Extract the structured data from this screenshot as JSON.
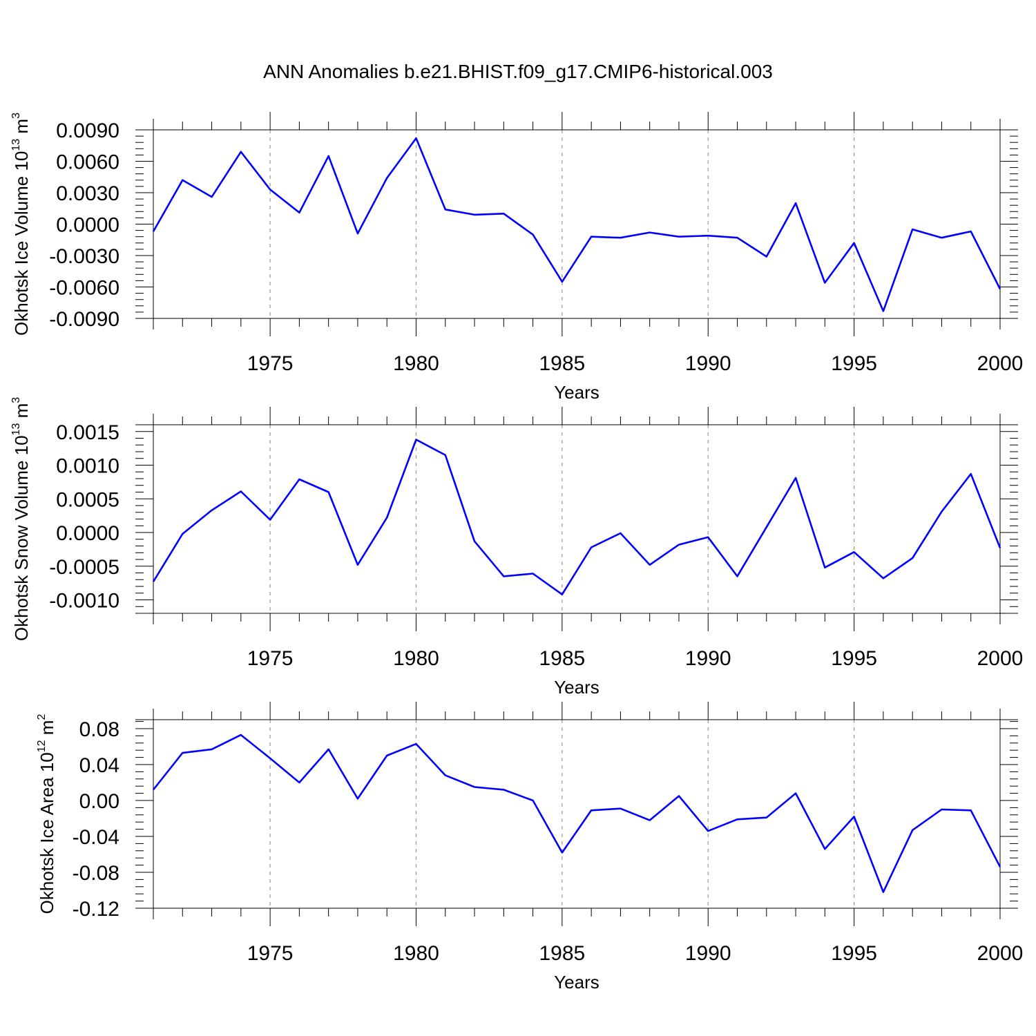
{
  "figure_title": "ANN Anomalies b.e21.BHIST.f09_g17.CMIP6-historical.003",
  "chart_data": [
    {
      "type": "line",
      "title": "ANN Anomalies b.e21.BHIST.f09_g17.CMIP6-historical.003",
      "ylabel": "Okhotsk Ice Volume",
      "ylabel_unit_base": "10",
      "ylabel_unit_exp": "13",
      "ylabel_unit_suffix": " m",
      "ylabel_unit_suffix_exp": "3",
      "xlabel": "Years",
      "xlim": [
        1971,
        2000
      ],
      "ylim": [
        -0.009,
        0.009
      ],
      "yticks": [
        0.009,
        0.006,
        0.003,
        0.0,
        -0.003,
        -0.006,
        -0.009
      ],
      "ytick_labels": [
        "0.0090",
        "0.0060",
        "0.0030",
        "0.0000",
        "-0.0030",
        "-0.0060",
        "-0.0090"
      ],
      "xticks": [
        1975,
        1980,
        1985,
        1990,
        1995,
        2000
      ],
      "xtick_labels": [
        "1975",
        "1980",
        "1985",
        "1990",
        "1995",
        "2000"
      ],
      "grid_x": true,
      "series": [
        {
          "name": "Okhotsk Ice Volume",
          "color": "#0000ff",
          "x": [
            1971,
            1972,
            1973,
            1974,
            1975,
            1976,
            1977,
            1978,
            1979,
            1980,
            1981,
            1982,
            1983,
            1984,
            1985,
            1986,
            1987,
            1988,
            1989,
            1990,
            1991,
            1992,
            1993,
            1994,
            1995,
            1996,
            1997,
            1998,
            1999,
            2000
          ],
          "values": [
            -0.0007,
            0.0042,
            0.0026,
            0.0069,
            0.0033,
            0.0011,
            0.0065,
            -0.0009,
            0.0044,
            0.0082,
            0.0014,
            0.0009,
            0.001,
            -0.001,
            -0.0055,
            -0.0012,
            -0.0013,
            -0.0008,
            -0.0012,
            -0.0011,
            -0.0013,
            -0.0031,
            0.002,
            -0.0056,
            -0.0018,
            -0.0083,
            -0.0005,
            -0.0013,
            -0.0007,
            -0.0062
          ]
        }
      ]
    },
    {
      "type": "line",
      "ylabel": "Okhotsk Snow Volume",
      "ylabel_unit_base": "10",
      "ylabel_unit_exp": "13",
      "ylabel_unit_suffix": " m",
      "ylabel_unit_suffix_exp": "3",
      "xlabel": "Years",
      "xlim": [
        1971,
        2000
      ],
      "ylim": [
        -0.0012,
        0.0016
      ],
      "yticks": [
        0.0015,
        0.001,
        0.0005,
        0.0,
        -0.0005,
        -0.001
      ],
      "ytick_labels": [
        "0.0015",
        "0.0010",
        "0.0005",
        "0.0000",
        "-0.0005",
        "-0.0010"
      ],
      "xticks": [
        1975,
        1980,
        1985,
        1990,
        1995,
        2000
      ],
      "xtick_labels": [
        "1975",
        "1980",
        "1985",
        "1990",
        "1995",
        "2000"
      ],
      "grid_x": true,
      "series": [
        {
          "name": "Okhotsk Snow Volume",
          "color": "#0000ff",
          "x": [
            1971,
            1972,
            1973,
            1974,
            1975,
            1976,
            1977,
            1978,
            1979,
            1980,
            1981,
            1982,
            1983,
            1984,
            1985,
            1986,
            1987,
            1988,
            1989,
            1990,
            1991,
            1992,
            1993,
            1994,
            1995,
            1996,
            1997,
            1998,
            1999,
            2000
          ],
          "values": [
            -0.00073,
            -2e-05,
            0.00033,
            0.00061,
            0.00019,
            0.00079,
            0.0006,
            -0.00048,
            0.00022,
            0.00138,
            0.00115,
            -0.00013,
            -0.00065,
            -0.00061,
            -0.00092,
            -0.00022,
            -1e-05,
            -0.00048,
            -0.00018,
            -7e-05,
            -0.00065,
            8e-05,
            0.00081,
            -0.00052,
            -0.00029,
            -0.00068,
            -0.00038,
            0.00031,
            0.00087,
            -0.00023
          ]
        }
      ]
    },
    {
      "type": "line",
      "ylabel": "Okhotsk Ice Area",
      "ylabel_unit_base": "10",
      "ylabel_unit_exp": "12",
      "ylabel_unit_suffix": " m",
      "ylabel_unit_suffix_exp": "2",
      "xlabel": "Years",
      "xlim": [
        1971,
        2000
      ],
      "ylim": [
        -0.12,
        0.09
      ],
      "yticks": [
        0.08,
        0.04,
        0.0,
        -0.04,
        -0.08,
        -0.12
      ],
      "ytick_labels": [
        "0.08",
        "0.04",
        "0.00",
        "-0.04",
        "-0.08",
        "-0.12"
      ],
      "xticks": [
        1975,
        1980,
        1985,
        1990,
        1995,
        2000
      ],
      "xtick_labels": [
        "1975",
        "1980",
        "1985",
        "1990",
        "1995",
        "2000"
      ],
      "grid_x": true,
      "series": [
        {
          "name": "Okhotsk Ice Area",
          "color": "#0000ff",
          "x": [
            1971,
            1972,
            1973,
            1974,
            1975,
            1976,
            1977,
            1978,
            1979,
            1980,
            1981,
            1982,
            1983,
            1984,
            1985,
            1986,
            1987,
            1988,
            1989,
            1990,
            1991,
            1992,
            1993,
            1994,
            1995,
            1996,
            1997,
            1998,
            1999,
            2000
          ],
          "values": [
            0.012,
            0.053,
            0.057,
            0.073,
            0.047,
            0.02,
            0.057,
            0.002,
            0.05,
            0.063,
            0.028,
            0.015,
            0.012,
            0.0,
            -0.058,
            -0.011,
            -0.009,
            -0.022,
            0.005,
            -0.034,
            -0.021,
            -0.019,
            0.008,
            -0.054,
            -0.018,
            -0.102,
            -0.033,
            -0.01,
            -0.011,
            -0.074
          ]
        }
      ]
    }
  ]
}
